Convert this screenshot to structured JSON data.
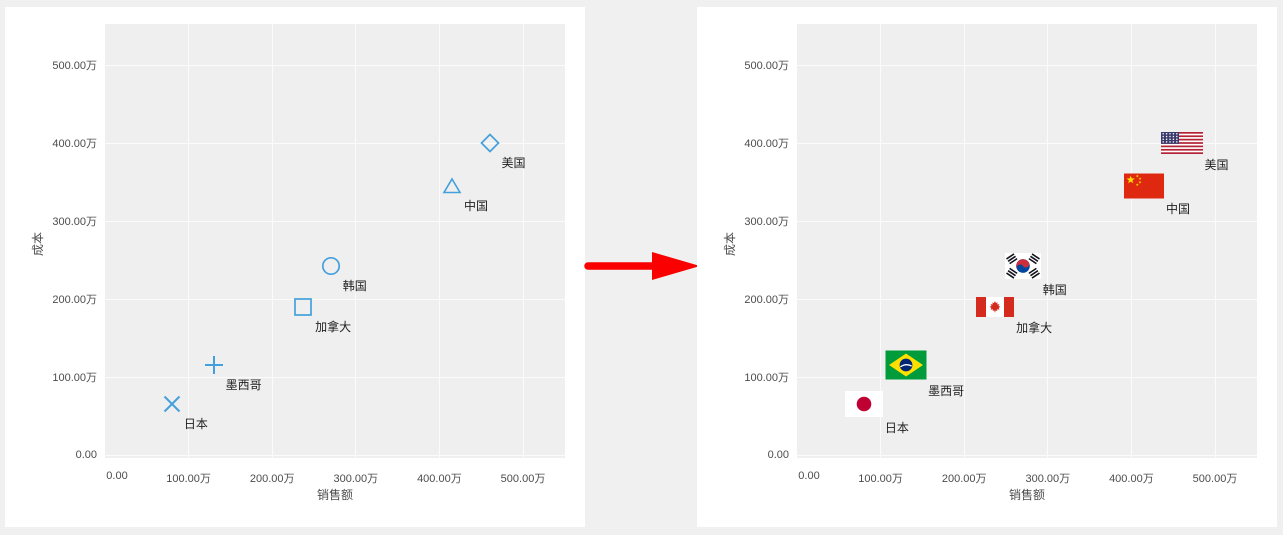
{
  "page": {
    "background": "#f0f0f0",
    "panel_background": "#ffffff",
    "plot_background": "#efefef"
  },
  "arrow": {
    "name": "transform-arrow",
    "color": "#fb0000",
    "direction": "right"
  },
  "panels": [
    {
      "id": "left",
      "marker_style": "shape"
    },
    {
      "id": "right",
      "marker_style": "flag"
    }
  ],
  "chart_data": {
    "type": "scatter",
    "xlabel": "销售额",
    "ylabel": "成本",
    "x_ticks": [
      "0.00",
      "100.00万",
      "200.00万",
      "300.00万",
      "400.00万",
      "500.00万"
    ],
    "y_ticks": [
      "0.00",
      "100.00万",
      "200.00万",
      "300.00万",
      "400.00万",
      "500.00万"
    ],
    "xlim_wan": [
      0,
      550
    ],
    "ylim_wan": [
      0,
      552
    ],
    "grid": true,
    "legend": "none",
    "marker_color": "#44a0dc",
    "points": [
      {
        "label": "日本",
        "name": "japan",
        "shape": "x",
        "flag": "japan",
        "sales_wan": 80,
        "cost_wan": 65
      },
      {
        "label": "墨西哥",
        "name": "mexico",
        "shape": "plus",
        "flag": "brazil",
        "sales_wan": 130,
        "cost_wan": 115
      },
      {
        "label": "加拿大",
        "name": "canada",
        "shape": "square",
        "flag": "canada",
        "sales_wan": 237,
        "cost_wan": 190
      },
      {
        "label": "韩国",
        "name": "south-korea",
        "shape": "circle",
        "flag": "south-korea",
        "sales_wan": 270,
        "cost_wan": 242
      },
      {
        "label": "中国",
        "name": "china",
        "shape": "triangle",
        "flag": "china",
        "sales_wan": 415,
        "cost_wan": 345
      },
      {
        "label": "美国",
        "name": "usa",
        "shape": "diamond",
        "flag": "usa",
        "sales_wan": 460,
        "cost_wan": 400
      }
    ]
  }
}
